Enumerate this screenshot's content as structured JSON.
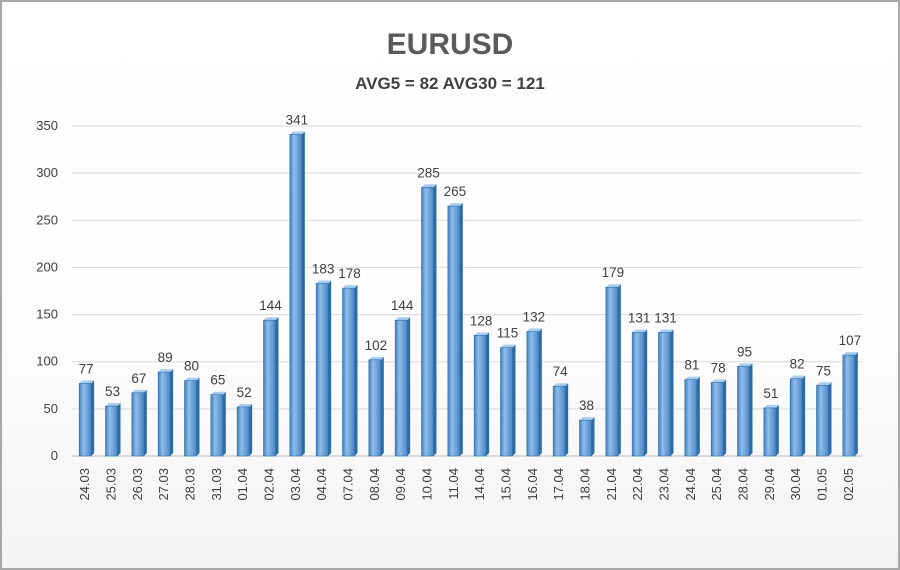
{
  "chart_data": {
    "type": "bar",
    "title": "EURUSD",
    "subtitle": "AVG5 = 82 AVG30 = 121",
    "categories": [
      "24.03",
      "25.03",
      "26.03",
      "27.03",
      "28.03",
      "31.03",
      "01.04",
      "02.04",
      "03.04",
      "04.04",
      "07.04",
      "08.04",
      "09.04",
      "10.04",
      "11.04",
      "14.04",
      "15.04",
      "16.04",
      "17.04",
      "18.04",
      "21.04",
      "22.04",
      "23.04",
      "24.04",
      "25.04",
      "28.04",
      "29.04",
      "30.04",
      "01.05",
      "02.05"
    ],
    "values": [
      77,
      53,
      67,
      89,
      80,
      65,
      52,
      144,
      341,
      183,
      178,
      102,
      144,
      285,
      265,
      128,
      115,
      132,
      74,
      38,
      179,
      131,
      131,
      81,
      78,
      95,
      51,
      82,
      75,
      107
    ],
    "ylim": [
      0,
      350
    ],
    "yticks": [
      0,
      50,
      100,
      150,
      200,
      250,
      300,
      350
    ],
    "grid": true,
    "legend": "none",
    "bar_color": "#5b9bd5",
    "bar_dark": "#2e6da4",
    "bar_light": "#a9cdf0"
  }
}
